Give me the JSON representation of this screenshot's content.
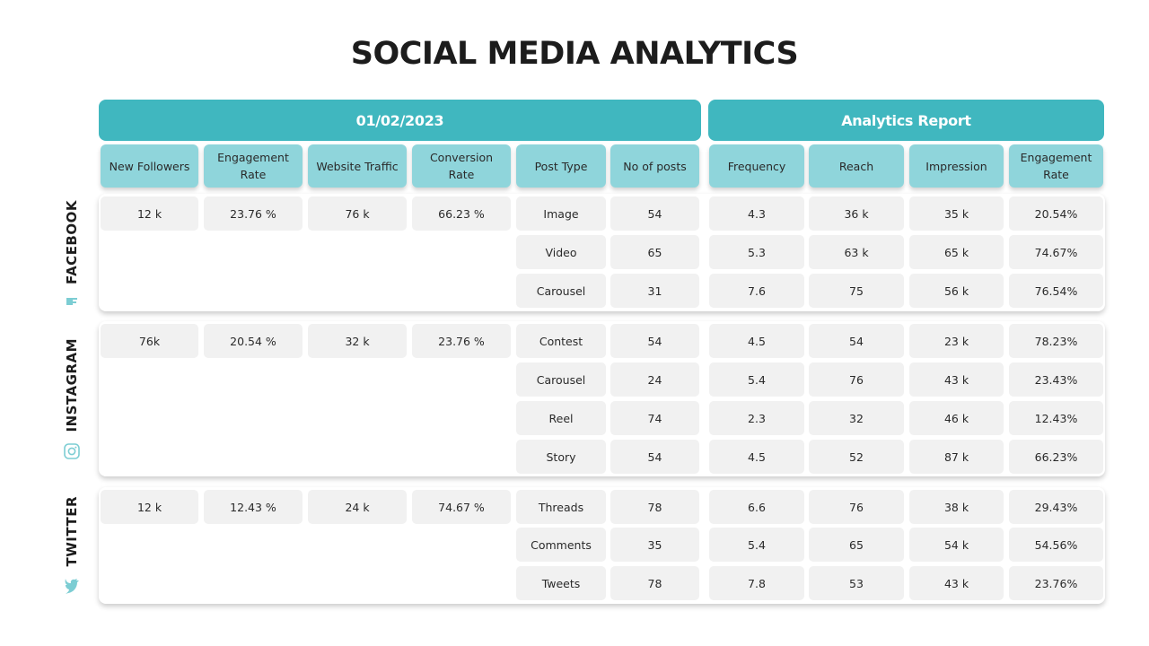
{
  "title": "SOCIAL MEDIA ANALYTICS",
  "groups": {
    "date": "01/02/2023",
    "report": "Analytics Report"
  },
  "columns": {
    "left": [
      "New Followers",
      "Engagement Rate",
      "Website Traffic",
      "Conversion Rate"
    ],
    "mid": [
      "Post Type",
      "No of posts"
    ],
    "right": [
      "Frequency",
      "Reach",
      "Impression",
      "Engagement Rate"
    ]
  },
  "platforms": [
    {
      "name": "FACEBOOK",
      "icon": "facebook-icon",
      "summary": [
        "12 k",
        "23.76 %",
        "76 k",
        "66.23 %"
      ],
      "rows": [
        [
          "Image",
          "54",
          "4.3",
          "36 k",
          "35 k",
          "20.54%"
        ],
        [
          "Video",
          "65",
          "5.3",
          "63 k",
          "65 k",
          "74.67%"
        ],
        [
          "Carousel",
          "31",
          "7.6",
          "75",
          "56 k",
          "76.54%"
        ]
      ]
    },
    {
      "name": "INSTAGRAM",
      "icon": "instagram-icon",
      "summary": [
        "76k",
        "20.54 %",
        "32 k",
        "23.76 %"
      ],
      "rows": [
        [
          "Contest",
          "54",
          "4.5",
          "54",
          "23 k",
          "78.23%"
        ],
        [
          "Carousel",
          "24",
          "5.4",
          "76",
          "43 k",
          "23.43%"
        ],
        [
          "Reel",
          "74",
          "2.3",
          "32",
          "46 k",
          "12.43%"
        ],
        [
          "Story",
          "54",
          "4.5",
          "52",
          "87 k",
          "66.23%"
        ]
      ]
    },
    {
      "name": "TWITTER",
      "icon": "twitter-icon",
      "summary": [
        "12 k",
        "12.43 %",
        "24 k",
        "74.67 %"
      ],
      "rows": [
        [
          "Threads",
          "78",
          "6.6",
          "76",
          "38 k",
          "29.43%"
        ],
        [
          "Comments",
          "35",
          "5.4",
          "65",
          "54 k",
          "54.56%"
        ],
        [
          "Tweets",
          "78",
          "7.8",
          "53",
          "43 k",
          "23.76%"
        ]
      ]
    }
  ],
  "colors": {
    "accent": "#40b7bf",
    "header_light": "#8fd5db",
    "cell": "#f1f1f1",
    "icon": "#7ccdd3"
  }
}
